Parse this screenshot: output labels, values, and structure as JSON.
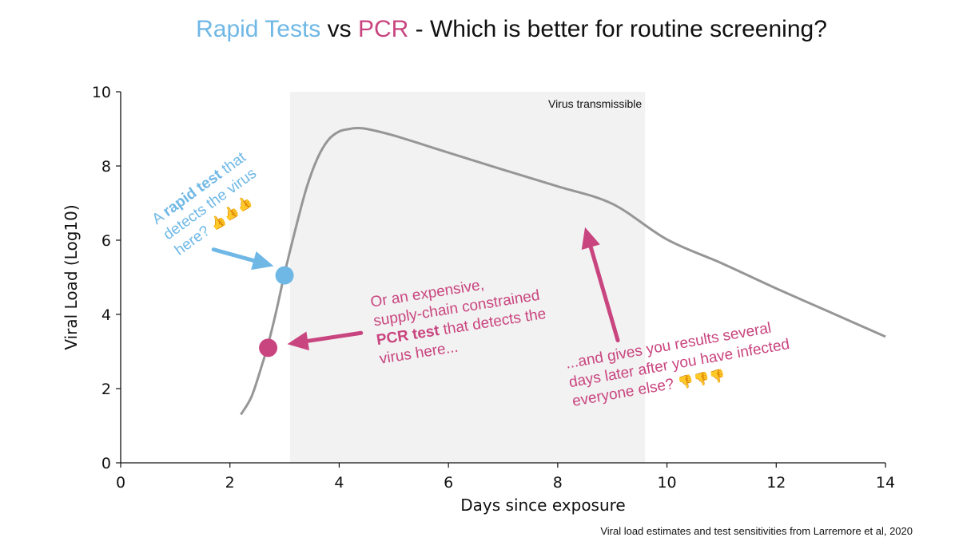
{
  "title": {
    "part1": "Rapid Tests",
    "part2": " vs ",
    "part3": "PCR",
    "part4": " - Which is better for routine screening?"
  },
  "colors": {
    "rapid": "#6fb8e6",
    "pcr": "#c9457f",
    "curve": "#969696",
    "shade": "#f2f2f2"
  },
  "annotations": {
    "rapid": {
      "line1_a": "A ",
      "line1_b": "rapid test",
      "line1_c": " that",
      "line2": "detects the virus",
      "line3": "here?",
      "emoji": "👍👍👍"
    },
    "pcr": {
      "line1": "Or an expensive,",
      "line2": "supply-chain constrained",
      "line3_a": "PCR test",
      "line3_b": " that detects the",
      "line4": "virus here..."
    },
    "later": {
      "line1": "...and gives you results several",
      "line2": "days later after you have infected",
      "line3": "everyone else?",
      "emoji": "👎👎👎"
    }
  },
  "footnote": "Viral load estimates and test sensitivities from Larremore et al, 2020",
  "chart_data": {
    "type": "line",
    "xlabel": "Days since exposure",
    "ylabel": "Viral Load (Log10)",
    "xlim": [
      0,
      14
    ],
    "ylim": [
      0,
      10
    ],
    "xticks": [
      0,
      2,
      4,
      6,
      8,
      10,
      12,
      14
    ],
    "yticks": [
      0,
      2,
      4,
      6,
      8,
      10
    ],
    "shaded_region": {
      "x_start": 3.1,
      "x_end": 9.6,
      "label": "Virus transmissible"
    },
    "series": [
      {
        "x": [
          2.2,
          2.4,
          2.6,
          2.7,
          2.85,
          3.0,
          3.2,
          3.4,
          3.6,
          3.8,
          4.0,
          4.2,
          4.3,
          4.5,
          5,
          6,
          7,
          8,
          9,
          10,
          11,
          12,
          13,
          14
        ],
        "y": [
          1.3,
          1.8,
          2.7,
          3.2,
          4.1,
          5.1,
          6.3,
          7.4,
          8.2,
          8.7,
          8.93,
          9.0,
          9.02,
          9.0,
          8.82,
          8.36,
          7.9,
          7.45,
          6.98,
          6.02,
          5.38,
          4.7,
          4.05,
          3.4
        ]
      }
    ],
    "points": [
      {
        "name": "rapid-test-detection",
        "x": 3.0,
        "y": 5.05,
        "color": "#6fb8e6"
      },
      {
        "name": "pcr-test-detection",
        "x": 2.7,
        "y": 3.1,
        "color": "#c9457f"
      }
    ],
    "arrows": [
      {
        "name": "rapid-arrow",
        "from": [
          1.7,
          5.75
        ],
        "to": [
          2.8,
          5.3
        ],
        "color": "#6fb8e6"
      },
      {
        "name": "pcr-arrow",
        "from": [
          4.4,
          3.5
        ],
        "to": [
          3.05,
          3.2
        ],
        "color": "#c9457f"
      },
      {
        "name": "later-arrow",
        "from": [
          9.1,
          3.3
        ],
        "to": [
          8.5,
          6.35
        ],
        "color": "#c9457f"
      }
    ]
  }
}
